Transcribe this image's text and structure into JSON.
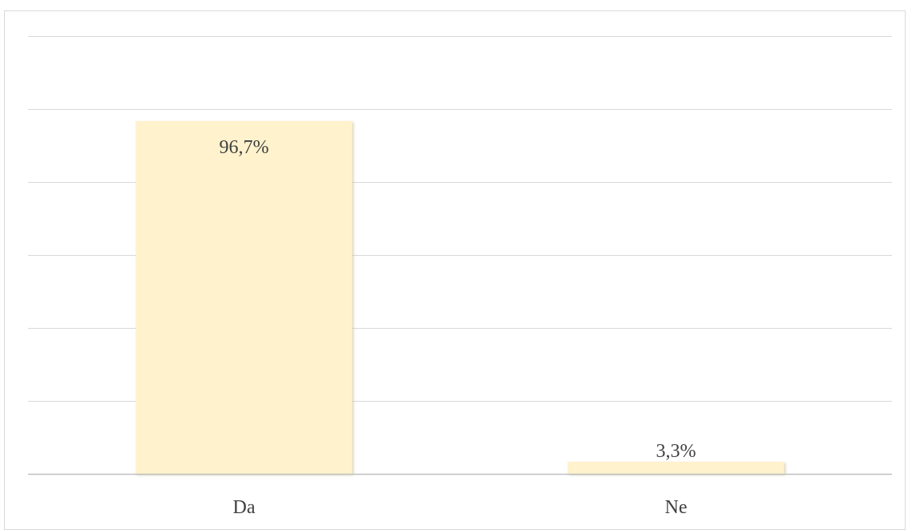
{
  "chart_data": {
    "type": "bar",
    "categories": [
      "Da",
      "Ne"
    ],
    "values": [
      96.7,
      3.3
    ],
    "data_labels": [
      "96,7%",
      "3,3%"
    ],
    "title": "",
    "xlabel": "",
    "ylabel": "",
    "ylim": [
      0,
      120
    ],
    "grid": true,
    "legend": "none",
    "colors": {
      "bar": "#fff2cc",
      "bar_shadow": "#d9c9a3",
      "grid": "#d9d9d9",
      "axis": "#bfbfbf",
      "text": "#404040"
    }
  }
}
